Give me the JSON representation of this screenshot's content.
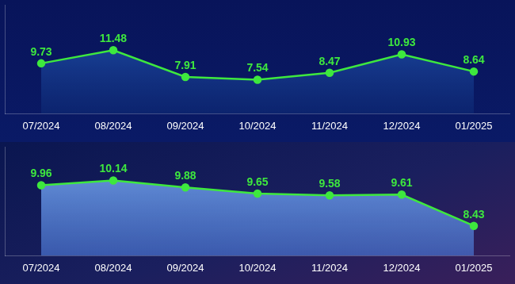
{
  "chart_data": [
    {
      "type": "line",
      "categories": [
        "07/2024",
        "08/2024",
        "09/2024",
        "10/2024",
        "11/2024",
        "12/2024",
        "01/2025"
      ],
      "values": [
        9.73,
        11.48,
        7.91,
        7.54,
        8.47,
        10.93,
        8.64
      ],
      "color": "#3ee83e",
      "marker": "circle",
      "ylim": [
        3,
        17.5
      ],
      "grid": false,
      "data_labels": true,
      "tick_labels": "x"
    },
    {
      "type": "line",
      "categories": [
        "07/2024",
        "08/2024",
        "09/2024",
        "10/2024",
        "11/2024",
        "12/2024",
        "01/2025"
      ],
      "values": [
        9.96,
        10.14,
        9.88,
        9.65,
        9.58,
        9.61,
        8.43
      ],
      "color": "#3ee83e",
      "marker": "circle",
      "ylim": [
        7.3,
        11.4
      ],
      "grid": false,
      "data_labels": true,
      "tick_labels": "x"
    }
  ]
}
